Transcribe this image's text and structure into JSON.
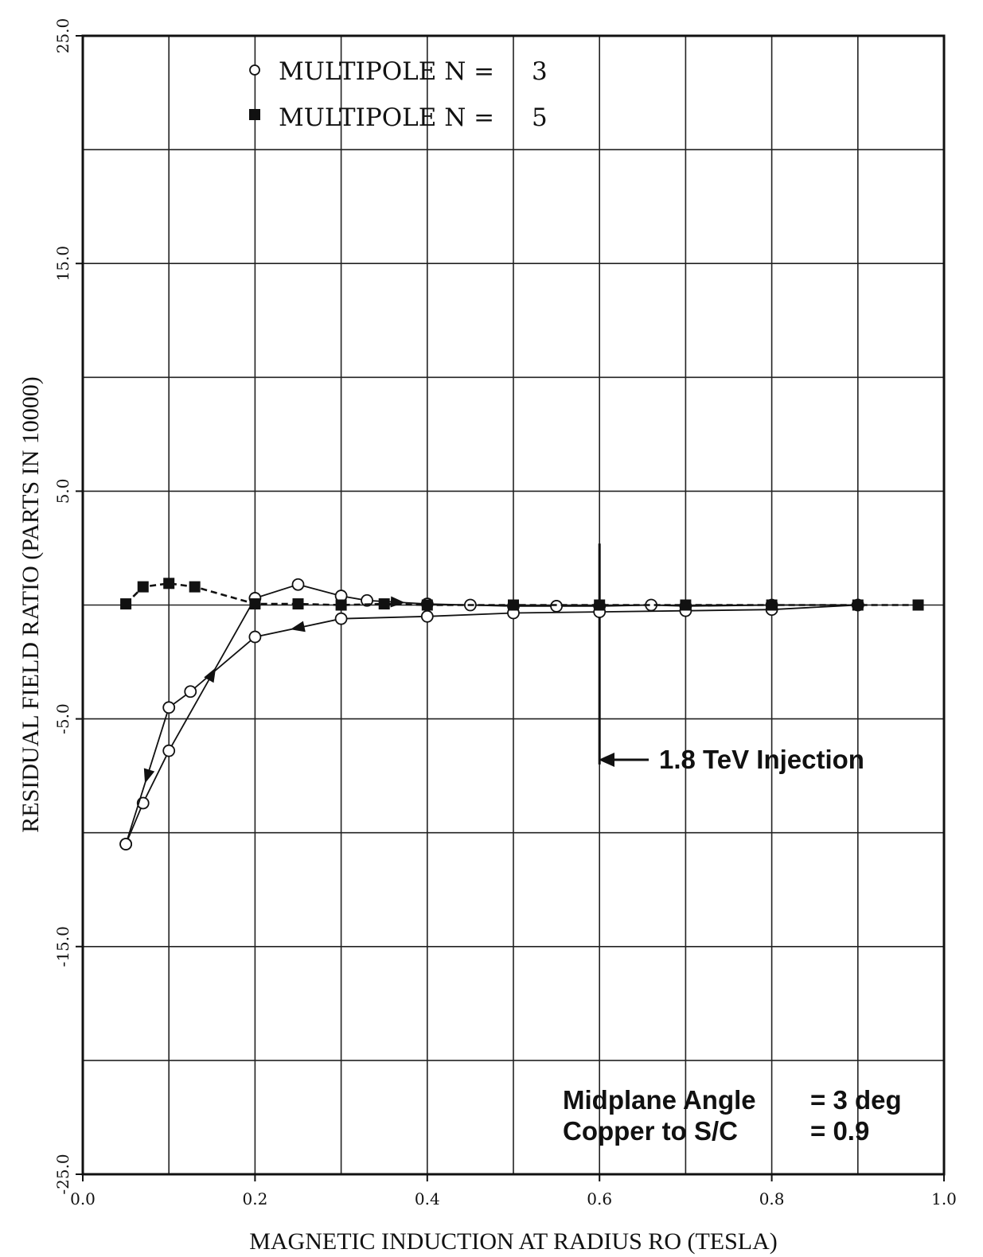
{
  "chart_data": {
    "type": "line",
    "title": "",
    "xlabel": "MAGNETIC INDUCTION AT RADIUS RO (TESLA)",
    "ylabel": "RESIDUAL FIELD RATIO (PARTS IN 10000)",
    "xlim": [
      0.0,
      1.0
    ],
    "ylim": [
      -25.0,
      25.0
    ],
    "x_ticks": [
      0.0,
      0.2,
      0.4,
      0.6,
      0.8,
      1.0
    ],
    "x_tick_labels": [
      "0.0",
      "0.2",
      "0.4",
      "0.6",
      "0.8",
      "1.0"
    ],
    "y_ticks": [
      -25.0,
      -15.0,
      -5.0,
      5.0,
      15.0,
      25.0
    ],
    "y_tick_labels": [
      "-25.0",
      "-15.0",
      "-5.0",
      "5.0",
      "15.0",
      "25.0"
    ],
    "grid": true,
    "legend": {
      "placement": "top-left",
      "entries": [
        {
          "marker": "open-circle",
          "label": "MULTIPOLE N =",
          "value": "3"
        },
        {
          "marker": "filled-square",
          "label": "MULTIPOLE N =",
          "value": "5"
        }
      ]
    },
    "series": [
      {
        "name": "MULTIPOLE N = 3 (up-ramp)",
        "marker": "open-circle",
        "line": "solid",
        "x": [
          0.05,
          0.07,
          0.1,
          0.2,
          0.25,
          0.3,
          0.33,
          0.4,
          0.45,
          0.5,
          0.55,
          0.6,
          0.66,
          0.7,
          0.8,
          0.9
        ],
        "y": [
          -10.5,
          -8.7,
          -6.4,
          0.3,
          0.9,
          0.4,
          0.2,
          0.05,
          0.0,
          -0.05,
          -0.05,
          -0.05,
          0.0,
          -0.05,
          0.0,
          0.0
        ]
      },
      {
        "name": "MULTIPOLE N = 3 (down-ramp)",
        "marker": "open-circle",
        "line": "solid",
        "x": [
          0.9,
          0.8,
          0.7,
          0.6,
          0.5,
          0.4,
          0.3,
          0.2,
          0.125,
          0.1,
          0.05
        ],
        "y": [
          0.0,
          -0.2,
          -0.25,
          -0.3,
          -0.35,
          -0.5,
          -0.6,
          -1.4,
          -3.8,
          -4.5,
          -10.5
        ]
      },
      {
        "name": "MULTIPOLE N = 5",
        "marker": "filled-square",
        "line": "dashed",
        "x": [
          0.05,
          0.07,
          0.1,
          0.13,
          0.2,
          0.25,
          0.3,
          0.35,
          0.4,
          0.5,
          0.6,
          0.7,
          0.8,
          0.9,
          0.97
        ],
        "y": [
          0.05,
          0.8,
          0.95,
          0.8,
          0.05,
          0.05,
          0.0,
          0.05,
          0.0,
          0.0,
          0.0,
          0.0,
          0.0,
          0.0,
          0.0
        ]
      }
    ],
    "annotations": [
      {
        "text": "1.8 TeV Injection",
        "x": 0.6
      },
      {
        "text": "Midplane Angle",
        "value": "= 3 deg"
      },
      {
        "text": "Copper to S/C",
        "value": "= 0.9"
      }
    ]
  }
}
